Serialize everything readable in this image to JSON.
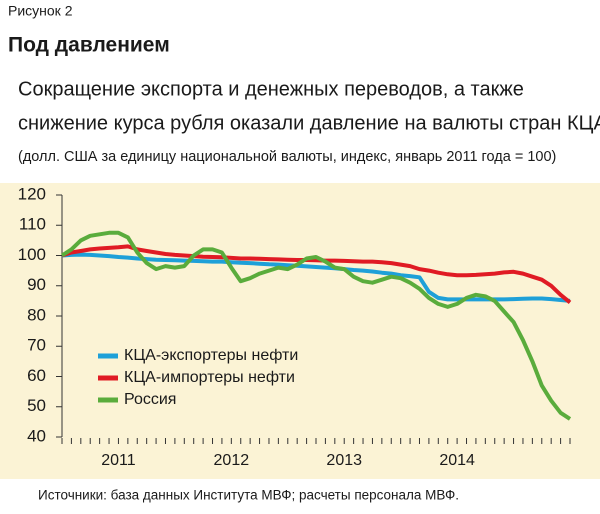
{
  "figure_label": "Рисунок 2",
  "chart_data": {
    "type": "line",
    "title": "Под давлением",
    "subtitle_lines": [
      "Сокращение экспорта и денежных переводов, а также",
      "снижение курса рубля оказали давление на валюты стран КЦА."
    ],
    "note": "(долл. США за единицу национальной валюты, индекс, январь 2011 года = 100)",
    "source": "Источники: база данных Института МВФ; расчеты персонала МВФ.",
    "categories": [
      null,
      null,
      null,
      null,
      null,
      null,
      "2011",
      null,
      null,
      null,
      null,
      null,
      null,
      null,
      null,
      null,
      null,
      null,
      "2012",
      null,
      null,
      null,
      null,
      null,
      null,
      null,
      null,
      null,
      null,
      null,
      "2013",
      null,
      null,
      null,
      null,
      null,
      null,
      null,
      null,
      null,
      null,
      null,
      "2014",
      null,
      null,
      null,
      null,
      null,
      null,
      null,
      null,
      null,
      null,
      null,
      null
    ],
    "ylim": [
      40,
      120
    ],
    "yticks": [
      40,
      50,
      60,
      70,
      80,
      90,
      100,
      110,
      120
    ],
    "grid": false,
    "legend": "lower left",
    "series": [
      {
        "name": "КЦА-экспортеры нефти",
        "color": "#1ea0d8",
        "values": [
          100,
          100.2,
          100.3,
          100.2,
          100,
          99.8,
          99.5,
          99.3,
          99,
          98.8,
          98.6,
          98.5,
          98.4,
          98.3,
          98.2,
          98.1,
          98,
          98,
          97.8,
          97.6,
          97.5,
          97.3,
          97.1,
          97,
          96.8,
          96.6,
          96.4,
          96.2,
          96,
          95.8,
          95.5,
          95.2,
          95,
          94.7,
          94.3,
          94,
          93.5,
          93.2,
          92.8,
          88,
          86,
          85.5,
          85.5,
          85.5,
          85.5,
          85.5,
          85.5,
          85.5,
          85.6,
          85.7,
          85.8,
          85.8,
          85.6,
          85.3,
          85
        ]
      },
      {
        "name": "КЦА-импортеры нефти",
        "color": "#e01b24",
        "values": [
          100,
          101,
          101.5,
          102,
          102.3,
          102.5,
          102.7,
          103,
          102,
          101.5,
          101,
          100.5,
          100.2,
          100,
          99.8,
          99.6,
          99.5,
          99.4,
          99.2,
          99,
          99,
          98.9,
          98.8,
          98.7,
          98.6,
          98.5,
          98.5,
          98.4,
          98.3,
          98.3,
          98.2,
          98.1,
          98,
          98,
          97.8,
          97.5,
          97,
          96.5,
          95.5,
          95,
          94.3,
          93.8,
          93.5,
          93.5,
          93.6,
          93.8,
          94,
          94.4,
          94.6,
          94,
          93,
          92,
          90,
          87,
          84.5
        ]
      },
      {
        "name": "Россия",
        "color": "#5aac3c",
        "values": [
          100,
          102,
          105,
          106.5,
          107,
          107.5,
          107.5,
          106,
          101,
          97.5,
          95.5,
          96.5,
          96,
          96.5,
          100,
          102,
          102,
          101,
          96,
          91.5,
          92.5,
          94,
          95,
          96,
          95.5,
          97,
          99,
          99.5,
          98,
          96,
          95.5,
          93,
          91.5,
          91,
          92,
          93,
          92.5,
          91,
          89,
          86,
          84,
          83,
          84,
          86,
          87,
          86.5,
          85,
          81.5,
          78,
          72,
          65,
          57,
          52,
          48,
          46
        ]
      }
    ]
  }
}
